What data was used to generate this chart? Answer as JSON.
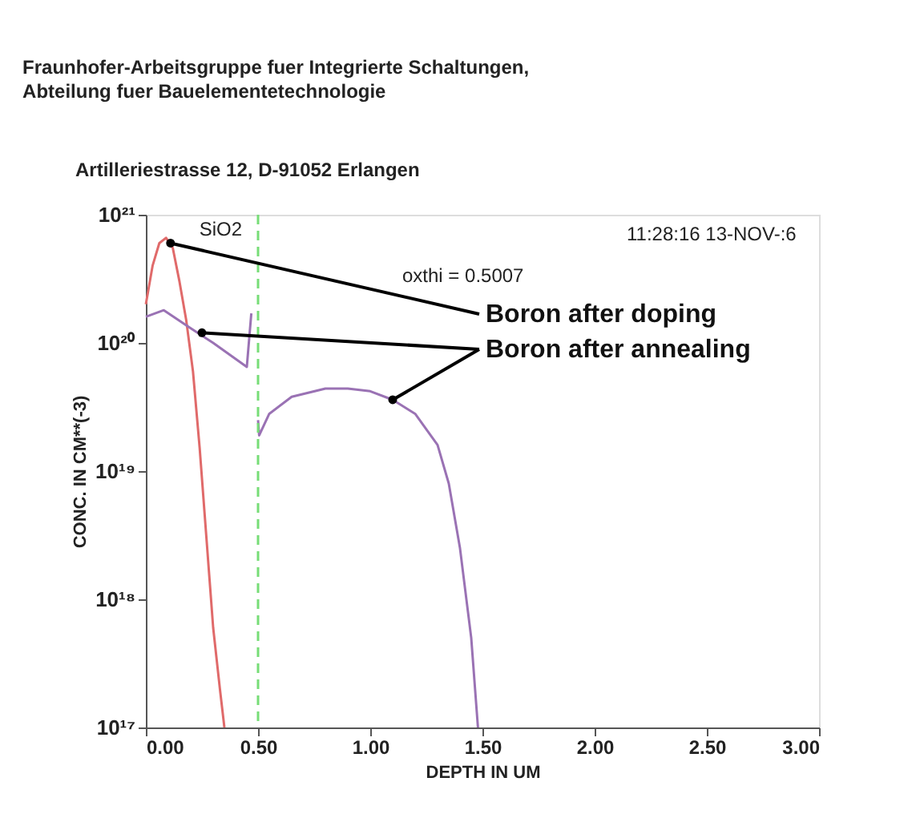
{
  "chart_data": {
    "type": "line",
    "title": "Fraunhofer-Arbeitsgruppe fuer Integrierte Schaltungen,",
    "subtitle": "Abteilung fuer Bauelementetechnologie",
    "annotations": [
      "Artilleriestrasse 12, D-91052 Erlangen",
      "oxthi =   0.5007",
      "11:28:16   13-NOV-:6",
      {
        "text": "Boron after doping",
        "x": 0.11,
        "y": 6e+20
      },
      {
        "text": "Boron after annealing",
        "x": 0.25,
        "y": 1.2e+20
      }
    ],
    "xlabel": "DEPTH IN UM",
    "ylabel": "CONC. IN CM**(-3)",
    "series": [
      {
        "color": "#e06a6a",
        "x": [
          0,
          0.03,
          0.06,
          0.09,
          0.12,
          0.15,
          0.18,
          0.21,
          0.24,
          0.27,
          0.3,
          0.33,
          0.35
        ],
        "values": [
          2e+20,
          4e+20,
          6e+20,
          6.6e+20,
          5.5e+20,
          3e+20,
          1.5e+20,
          6e+19,
          1.5e+19,
          3e+18,
          6e+17,
          2e+17,
          1e+17
        ]
      },
      {
        "color": "#9a72b4",
        "x": [
          0,
          0.08,
          0.2,
          0.3,
          0.4,
          0.45,
          0.47,
          0.48,
          0.5,
          0.505,
          0.55,
          0.65,
          0.8,
          0.9,
          1.0,
          1.1,
          1.2,
          1.3,
          1.35,
          1.4,
          1.45,
          1.48
        ],
        "values": [
          1.6e+20,
          1.8e+20,
          1.3e+20,
          1e+20,
          7.5e+19,
          6.5e+19,
          1.7e+20,
          null,
          2.5e+19,
          1.9e+19,
          2.8e+19,
          3.8e+19,
          4.4e+19,
          4.4e+19,
          4.2e+19,
          3.6e+19,
          2.8e+19,
          1.6e+19,
          8e+18,
          2.5e+18,
          5e+17,
          1e+17
        ]
      }
    ],
    "xlim": [
      0,
      3
    ],
    "xticks": [
      {
        "value": 0,
        "label": "0.00"
      },
      {
        "value": 0.5,
        "label": "0.50"
      },
      {
        "value": 1,
        "label": "1.00"
      },
      {
        "value": 1.5,
        "label": "1.50"
      },
      {
        "value": 2,
        "label": "2.00"
      },
      {
        "value": 2.5,
        "label": "2.50"
      },
      {
        "value": 3,
        "label": "3.00"
      }
    ],
    "ylim": [
      1e+17,
      1e+21
    ],
    "yticks": [
      {
        "value": 1e+17,
        "label": "10¹⁷"
      },
      {
        "value": 1e+18,
        "label": "10¹⁸"
      },
      {
        "value": 1e+19,
        "label": "10¹⁹"
      },
      {
        "value": 1e+20,
        "label": "10²⁰"
      },
      {
        "value": 1e+21,
        "label": "10²¹"
      }
    ],
    "log": "y",
    "grid": false,
    "marker": "none",
    "line_style": "solid",
    "ref_lines": [
      {
        "axis": "x",
        "value": 0.5,
        "label": "SiO2",
        "color": "#77dd77",
        "line_style": "dashed"
      }
    ]
  }
}
